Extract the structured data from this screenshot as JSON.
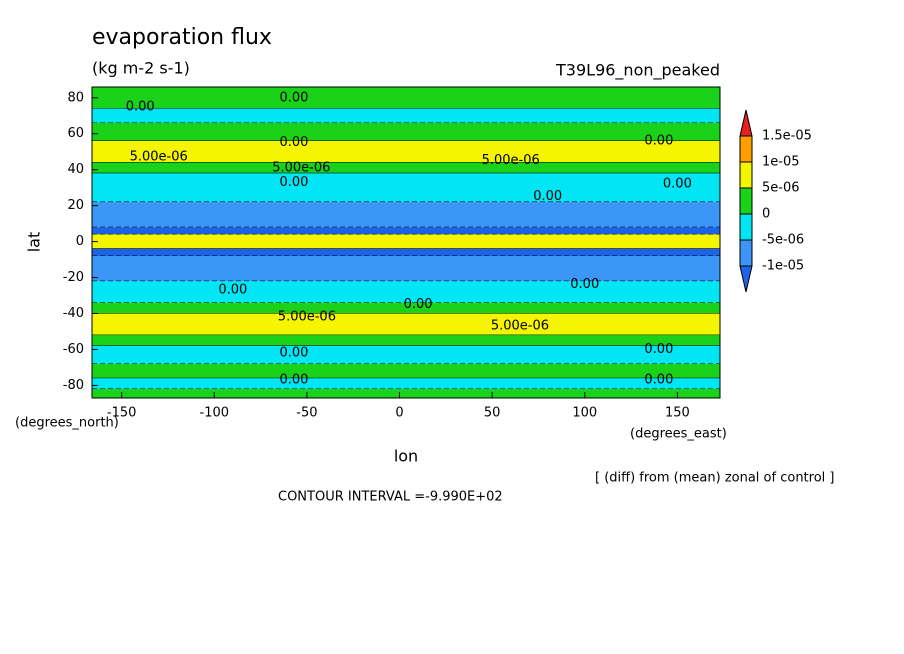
{
  "chart_data": {
    "type": "contour",
    "title": "evaporation flux",
    "units": "(kg m-2 s-1)",
    "subtitle": "T39L96_non_peaked",
    "x_label": "lon",
    "y_label": "lat",
    "x_units": "(degrees_east)",
    "y_units": "(degrees_north)",
    "note": "[ (diff) from (mean) zonal of control ]",
    "footer": "CONTOUR INTERVAL =-9.990E+02",
    "xlim": [
      -166,
      173
    ],
    "ylim": [
      -87,
      86
    ],
    "xticks": [
      -150,
      -100,
      -50,
      0,
      50,
      100,
      150
    ],
    "yticks": [
      -80,
      -60,
      -40,
      -20,
      0,
      20,
      40,
      60,
      80
    ],
    "levels": [
      {
        "value": -1e-05,
        "label": "-1e-05"
      },
      {
        "value": -5e-06,
        "label": "-5e-06"
      },
      0,
      {
        "value": 5e-06,
        "label": "5e-06"
      },
      {
        "value": 1e-05,
        "label": "1e-05"
      },
      {
        "value": 1.5e-05,
        "label": "1.5e-05"
      }
    ],
    "colors": [
      "#1e64e6",
      "#3c96f5",
      "#00e6f5",
      "#19d219",
      "#f5f500",
      "#ffa000",
      "#e61e1e"
    ],
    "bands": [
      {
        "lat": [
          86,
          74
        ],
        "value": 2e-06
      },
      {
        "lat": [
          74,
          66
        ],
        "value": -2e-06
      },
      {
        "lat": [
          66,
          56
        ],
        "value": 2e-06
      },
      {
        "lat": [
          56,
          44
        ],
        "value": 7e-06
      },
      {
        "lat": [
          44,
          38
        ],
        "value": 2e-06
      },
      {
        "lat": [
          38,
          22
        ],
        "value": -2e-06
      },
      {
        "lat": [
          22,
          8
        ],
        "value": -7e-06
      },
      {
        "lat": [
          8,
          4
        ],
        "value": -1.2e-05
      },
      {
        "lat": [
          4,
          -4
        ],
        "value": 7e-06
      },
      {
        "lat": [
          -4,
          -8
        ],
        "value": -1.2e-05
      },
      {
        "lat": [
          -8,
          -22
        ],
        "value": -7e-06
      },
      {
        "lat": [
          -22,
          -34
        ],
        "value": -2e-06
      },
      {
        "lat": [
          -34,
          -40
        ],
        "value": 2e-06
      },
      {
        "lat": [
          -40,
          -52
        ],
        "value": 7e-06
      },
      {
        "lat": [
          -52,
          -58
        ],
        "value": 2e-06
      },
      {
        "lat": [
          -58,
          -68
        ],
        "value": -2e-06
      },
      {
        "lat": [
          -68,
          -76
        ],
        "value": 2e-06
      },
      {
        "lat": [
          -76,
          -82
        ],
        "value": -2e-06
      },
      {
        "lat": [
          -82,
          -87
        ],
        "value": 2e-06
      }
    ],
    "contour_labels": [
      {
        "text": "0.00",
        "lon": -140,
        "lat": 75
      },
      {
        "text": "0.00",
        "lon": -57,
        "lat": 80
      },
      {
        "text": "0.00",
        "lon": -57,
        "lat": 55
      },
      {
        "text": "5.00e-06",
        "lon": -130,
        "lat": 47
      },
      {
        "text": "5.00e-06",
        "lon": -53,
        "lat": 41
      },
      {
        "text": "5.00e-06",
        "lon": 60,
        "lat": 45
      },
      {
        "text": "0.00",
        "lon": 140,
        "lat": 56
      },
      {
        "text": "0.00",
        "lon": -57,
        "lat": 33
      },
      {
        "text": "0.00",
        "lon": 150,
        "lat": 32
      },
      {
        "text": "0.00",
        "lon": 80,
        "lat": 25
      },
      {
        "text": "0.00",
        "lon": -90,
        "lat": -27
      },
      {
        "text": "0.00",
        "lon": 10,
        "lat": -35
      },
      {
        "text": "0.00",
        "lon": 100,
        "lat": -24
      },
      {
        "text": "5.00e-06",
        "lon": -50,
        "lat": -42
      },
      {
        "text": "5.00e-06",
        "lon": 65,
        "lat": -47
      },
      {
        "text": "0.00",
        "lon": -57,
        "lat": -62
      },
      {
        "text": "0.00",
        "lon": 140,
        "lat": -60
      },
      {
        "text": "0.00",
        "lon": -57,
        "lat": -77
      },
      {
        "text": "0.00",
        "lon": 140,
        "lat": -77
      }
    ]
  }
}
